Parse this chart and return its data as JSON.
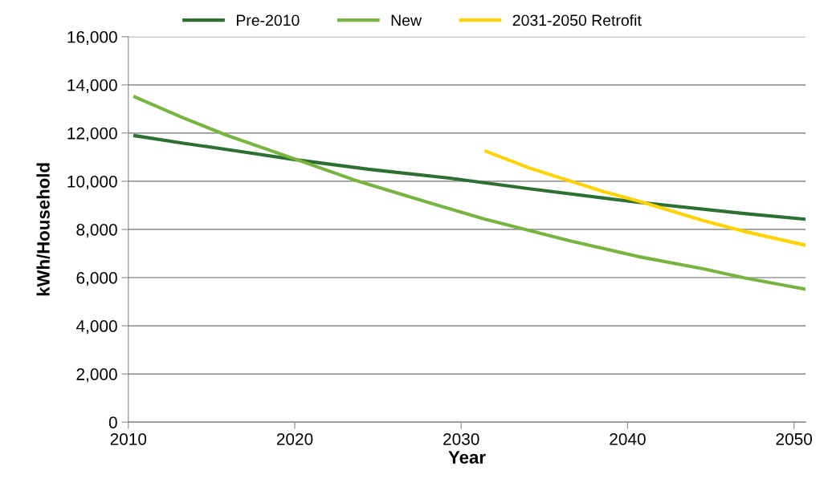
{
  "chart_data": {
    "type": "line",
    "xlabel": "Year",
    "ylabel": "kWh/Household",
    "xlim": [
      2010,
      2050.7
    ],
    "xticks": [
      2010,
      2020,
      2030,
      2040,
      2050
    ],
    "ylim": [
      0,
      16000
    ],
    "yticks": [
      {
        "value": 0,
        "label": "0"
      },
      {
        "value": 2000,
        "label": "2,000"
      },
      {
        "value": 4000,
        "label": "4,000"
      },
      {
        "value": 6000,
        "label": "6,000"
      },
      {
        "value": 8000,
        "label": "8,000"
      },
      {
        "value": 10000,
        "label": "10,000"
      },
      {
        "value": 12000,
        "label": "12,000"
      },
      {
        "value": 14000,
        "label": "14,000"
      },
      {
        "value": 16000,
        "label": "16,000"
      }
    ],
    "grid": "y",
    "legend": "top",
    "marker": "none",
    "line_style": "solid",
    "series": [
      {
        "name": "Pre-2010",
        "color": "#2e7033",
        "x": [
          2010.4,
          2013.3,
          2016.3,
          2019.9,
          2024.4,
          2029.3,
          2034.1,
          2040.6,
          2047.0,
          2050.6
        ],
        "values": [
          11890,
          11580,
          11280,
          10910,
          10500,
          10130,
          9690,
          9130,
          8660,
          8430
        ]
      },
      {
        "name": "New",
        "color": "#79b341",
        "x": [
          2010.4,
          2013.3,
          2015.9,
          2019.9,
          2023.6,
          2028.5,
          2031.4,
          2036.5,
          2040.6,
          2044.6,
          2047.0,
          2050.6
        ],
        "values": [
          13500,
          12630,
          11910,
          10950,
          10050,
          9020,
          8430,
          7530,
          6880,
          6360,
          5990,
          5530
        ]
      },
      {
        "name": "2031-2050 Retrofit",
        "color": "#ffd200",
        "x": [
          2031.5,
          2034.1,
          2038.5,
          2040.6,
          2044.6,
          2047.0,
          2050.6
        ],
        "values": [
          11240,
          10550,
          9580,
          9190,
          8360,
          7920,
          7360
        ]
      }
    ]
  }
}
